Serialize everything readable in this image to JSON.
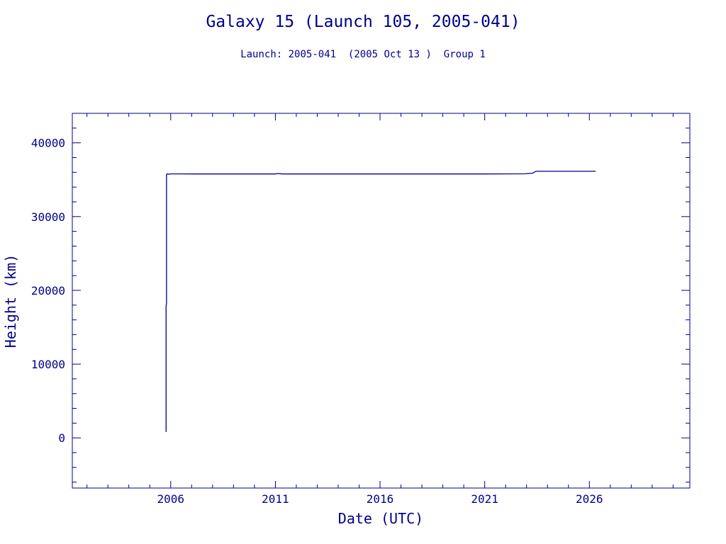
{
  "colors": {
    "ink": "#00008b",
    "background": "#ffffff"
  },
  "chart_data": {
    "type": "line",
    "title": "Galaxy 15 (Launch 105, 2005-041)",
    "subtitle": "Launch: 2005-041  (2005 Oct 13 )  Group 1",
    "xlabel": "Date (UTC)",
    "ylabel": "Height (km)",
    "xlim": [
      2001.3,
      2030.8
    ],
    "ylim": [
      -6800,
      44000
    ],
    "x_ticks": [
      2006,
      2011,
      2016,
      2021,
      2026
    ],
    "x_tick_labels": [
      "2006",
      "2011",
      "2016",
      "2021",
      "2026"
    ],
    "y_ticks": [
      0,
      10000,
      20000,
      30000,
      40000
    ],
    "y_tick_labels": [
      "0",
      "10000",
      "20000",
      "30000",
      "40000"
    ],
    "grid": false,
    "series": [
      {
        "x": [
          2005.78,
          2005.78,
          2005.8,
          2005.8,
          2005.83,
          2005.9,
          2006.0,
          2007.0,
          2009.0,
          2011.0,
          2011.15,
          2011.3,
          2013.0,
          2016.0,
          2019.0,
          2021.0,
          2022.9,
          2023.3,
          2023.45,
          2024.5,
          2025.5,
          2026.3
        ],
        "y": [
          800,
          18000,
          18100,
          35700,
          35800,
          35750,
          35790,
          35786,
          35786,
          35786,
          35850,
          35786,
          35786,
          35786,
          35786,
          35786,
          35800,
          35900,
          36150,
          36150,
          36150,
          36150
        ]
      }
    ]
  }
}
